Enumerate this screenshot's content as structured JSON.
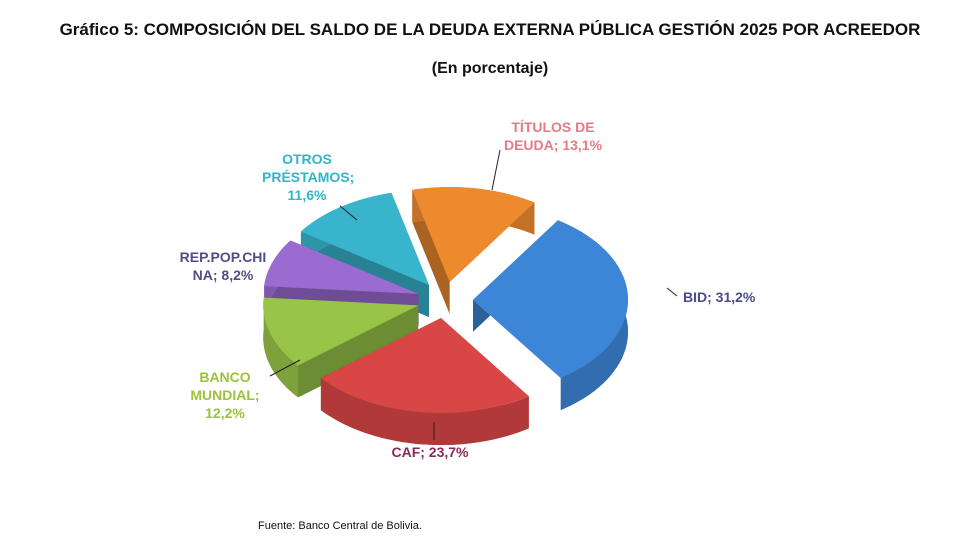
{
  "chart_data": {
    "type": "pie",
    "title": "Gráfico 5: COMPOSICIÓN DEL SALDO DE LA DEUDA EXTERNA PÚBLICA GESTIÓN 2025 POR ACREEDOR",
    "subtitle": "(En porcentaje)",
    "slices": [
      {
        "name": "TÍTULOS DE DEUDA",
        "value": 13.1,
        "label": "TÍTULOS DE DEUDA; 13,1%",
        "color": "#ee8a2e",
        "label_color": "#e87a86"
      },
      {
        "name": "BID",
        "value": 31.2,
        "label": "BID; 31,2%",
        "color": "#3d85d6",
        "label_color": "#4a4a8c"
      },
      {
        "name": "CAF",
        "value": 23.7,
        "label": "CAF; 23,7%",
        "color": "#d94646",
        "label_color": "#8c2a55"
      },
      {
        "name": "BANCO MUNDIAL",
        "value": 12.2,
        "label": "BANCO MUNDIAL; 12,2%",
        "color": "#98c448",
        "label_color": "#9cc23a"
      },
      {
        "name": "REP.POP.CHINA",
        "value": 8.2,
        "label": "REP.POP.CHI NA; 8,2%",
        "color": "#9a6bd0",
        "label_color": "#4f4f88"
      },
      {
        "name": "OTROS PRÉSTAMOS",
        "value": 11.6,
        "label": "OTROS PRÉSTAMOS; 11,6%",
        "color": "#38b4cc",
        "label_color": "#2fb6c8"
      }
    ],
    "source": "Fuente: Banco Central de Bolivia."
  }
}
